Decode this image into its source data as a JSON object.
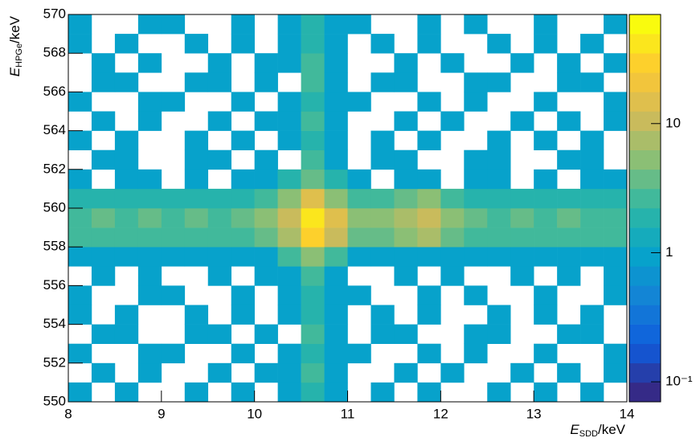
{
  "chart_data": {
    "type": "heatmap",
    "xlabel": {
      "symbol": "E",
      "sub": "SDD",
      "unit": "/keV"
    },
    "ylabel": {
      "symbol": "E",
      "sub": "HPGe",
      "unit": "/keV"
    },
    "xlim": [
      8,
      14
    ],
    "ylim": [
      550,
      570
    ],
    "xticks": [
      8,
      9,
      10,
      11,
      12,
      13,
      14
    ],
    "yticks": [
      550,
      552,
      554,
      556,
      558,
      560,
      562,
      564,
      566,
      568,
      570
    ],
    "zlim": [
      0.07,
      70
    ],
    "zlog": true,
    "zticks": [
      {
        "value": 0.1,
        "label": "10⁻¹"
      },
      1,
      10
    ],
    "palette": [
      "#352a87",
      "#0f5cdd",
      "#1481d6",
      "#06a4ca",
      "#2eb7a4",
      "#87bf77",
      "#d1bb59",
      "#fec832",
      "#f9fb0e"
    ],
    "values": [
      [
        1,
        0,
        1,
        0,
        0,
        1,
        0,
        1,
        0,
        1,
        2,
        1,
        0,
        1,
        0,
        1,
        0,
        0,
        1,
        0,
        1,
        0,
        1,
        0
      ],
      [
        0,
        1,
        0,
        1,
        0,
        0,
        1,
        0,
        1,
        1,
        3,
        1,
        0,
        0,
        1,
        0,
        1,
        0,
        0,
        1,
        0,
        1,
        0,
        1
      ],
      [
        1,
        0,
        0,
        1,
        1,
        0,
        0,
        1,
        0,
        1,
        2,
        1,
        1,
        0,
        0,
        1,
        0,
        1,
        0,
        0,
        1,
        0,
        0,
        1
      ],
      [
        0,
        1,
        1,
        0,
        0,
        1,
        1,
        0,
        1,
        0,
        3,
        1,
        0,
        1,
        1,
        0,
        0,
        1,
        1,
        0,
        0,
        1,
        1,
        0
      ],
      [
        1,
        0,
        1,
        0,
        0,
        1,
        0,
        1,
        0,
        1,
        2,
        1,
        0,
        1,
        0,
        1,
        0,
        0,
        1,
        0,
        1,
        0,
        1,
        0
      ],
      [
        1,
        0,
        0,
        1,
        1,
        0,
        0,
        1,
        0,
        1,
        2,
        1,
        1,
        0,
        0,
        1,
        0,
        1,
        0,
        0,
        1,
        0,
        0,
        1
      ],
      [
        0,
        1,
        0,
        1,
        0,
        0,
        1,
        0,
        1,
        1,
        3,
        1,
        0,
        0,
        1,
        0,
        1,
        0,
        0,
        1,
        0,
        1,
        0,
        1
      ],
      [
        1,
        1,
        1,
        1,
        1,
        1,
        1,
        1,
        1,
        3,
        5,
        3,
        1,
        1,
        1,
        1,
        1,
        1,
        1,
        1,
        1,
        1,
        1,
        1
      ],
      [
        3,
        3,
        3,
        3,
        3,
        3,
        3,
        3,
        4,
        8,
        25,
        10,
        4,
        4,
        5,
        8,
        4,
        3,
        3,
        3,
        3,
        3,
        3,
        3
      ],
      [
        3,
        4,
        3,
        4,
        3,
        4,
        3,
        4,
        5,
        12,
        45,
        15,
        5,
        5,
        8,
        12,
        5,
        4,
        3,
        4,
        3,
        4,
        3,
        3
      ],
      [
        2,
        2,
        2,
        2,
        2,
        2,
        2,
        2,
        3,
        6,
        15,
        6,
        3,
        3,
        4,
        5,
        3,
        2,
        2,
        2,
        2,
        2,
        2,
        2
      ],
      [
        1,
        0,
        1,
        1,
        0,
        1,
        0,
        1,
        1,
        2,
        4,
        2,
        1,
        0,
        1,
        1,
        0,
        1,
        1,
        0,
        1,
        0,
        1,
        1
      ],
      [
        0,
        1,
        1,
        0,
        0,
        1,
        1,
        0,
        1,
        0,
        3,
        1,
        0,
        1,
        1,
        0,
        0,
        1,
        1,
        0,
        0,
        1,
        1,
        0
      ],
      [
        1,
        0,
        1,
        0,
        0,
        1,
        0,
        1,
        0,
        1,
        2,
        1,
        0,
        1,
        0,
        1,
        0,
        0,
        1,
        0,
        1,
        0,
        1,
        0
      ],
      [
        0,
        1,
        0,
        1,
        0,
        0,
        1,
        0,
        1,
        1,
        3,
        1,
        0,
        0,
        1,
        0,
        1,
        0,
        0,
        1,
        0,
        1,
        0,
        1
      ],
      [
        1,
        0,
        0,
        1,
        1,
        0,
        0,
        1,
        0,
        1,
        2,
        1,
        1,
        0,
        0,
        1,
        0,
        1,
        0,
        0,
        1,
        0,
        0,
        1
      ],
      [
        0,
        1,
        1,
        0,
        0,
        1,
        1,
        0,
        1,
        0,
        3,
        1,
        0,
        1,
        1,
        0,
        0,
        1,
        1,
        0,
        0,
        1,
        1,
        0
      ],
      [
        0,
        1,
        0,
        1,
        0,
        0,
        1,
        0,
        1,
        1,
        3,
        1,
        0,
        0,
        1,
        0,
        1,
        0,
        0,
        1,
        0,
        1,
        0,
        1
      ],
      [
        1,
        0,
        1,
        0,
        0,
        1,
        0,
        1,
        0,
        1,
        2,
        1,
        0,
        1,
        0,
        1,
        0,
        0,
        1,
        0,
        1,
        0,
        1,
        0
      ],
      [
        1,
        0,
        0,
        1,
        1,
        0,
        0,
        1,
        0,
        1,
        2,
        1,
        1,
        0,
        0,
        1,
        0,
        1,
        0,
        0,
        1,
        0,
        0,
        1
      ]
    ]
  }
}
